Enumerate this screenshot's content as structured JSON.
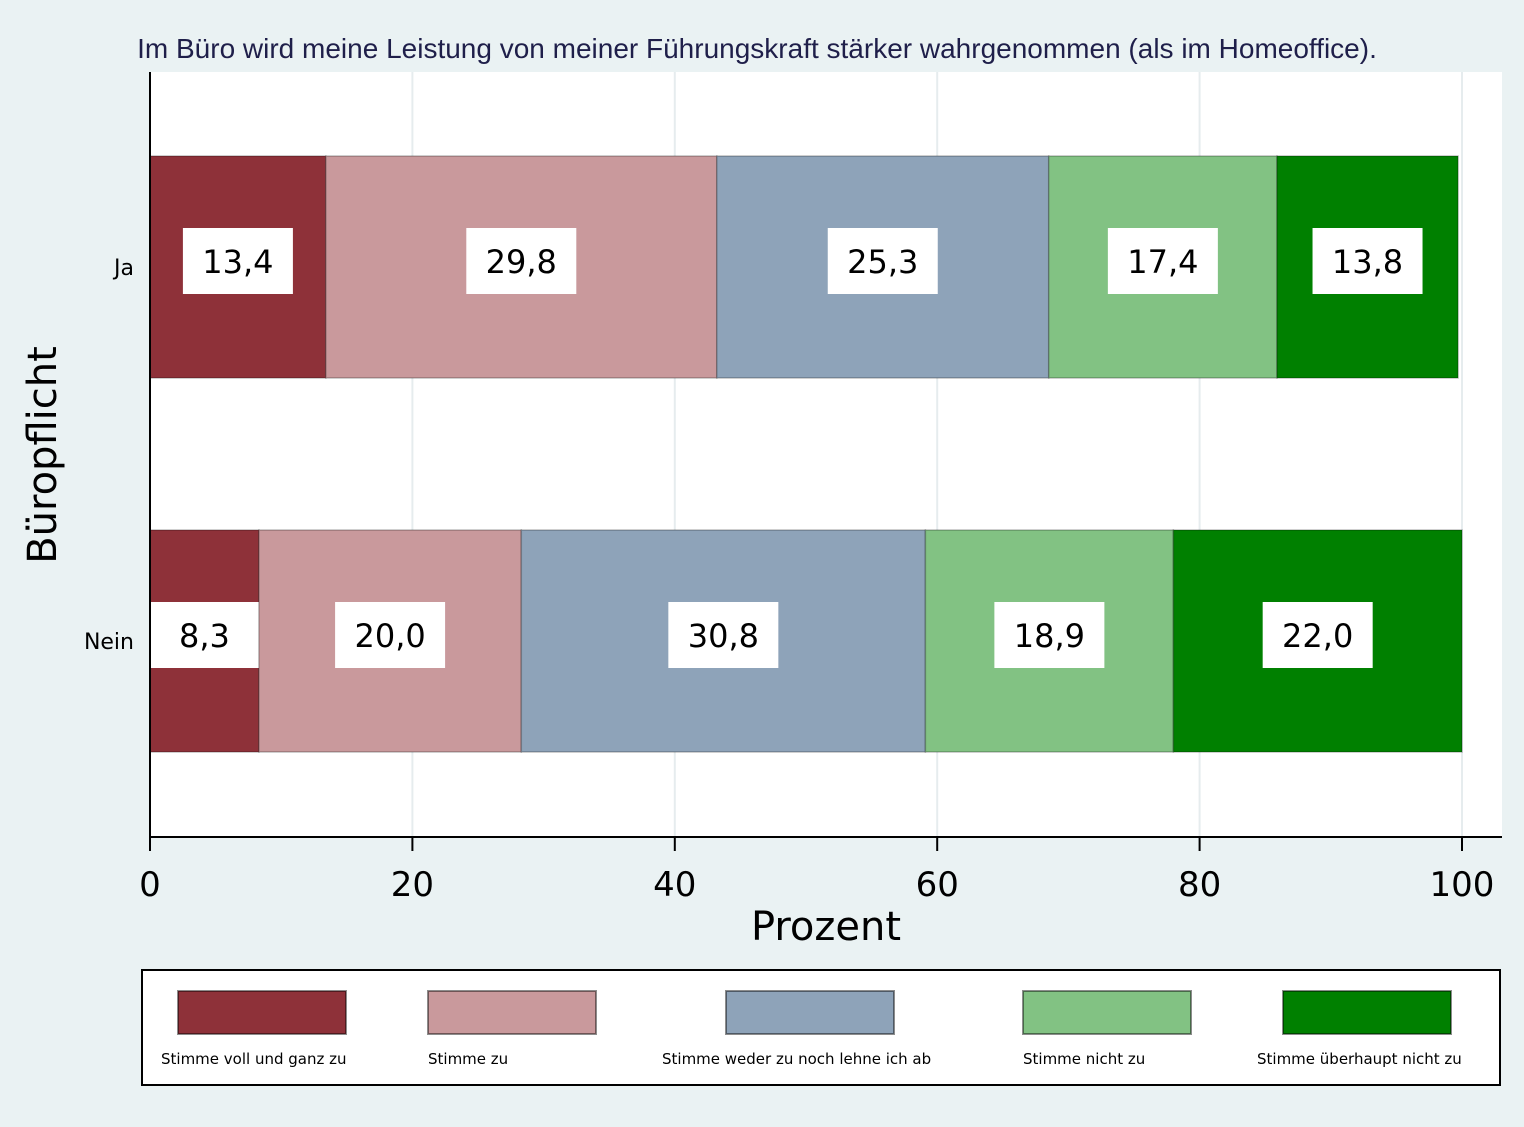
{
  "chart_data": {
    "type": "bar",
    "orientation": "horizontal",
    "stacked": true,
    "title": "Im Büro wird meine Leistung von meiner Führungskraft stärker wahrgenommen (als im Homeoffice).",
    "xlabel": "Prozent",
    "ylabel": "Büropflicht",
    "xlim": [
      0,
      100
    ],
    "xticks": [
      "0",
      "20",
      "40",
      "60",
      "80",
      "100"
    ],
    "grid": true,
    "legend_position": "bottom",
    "categories": [
      "Ja",
      "Nein"
    ],
    "series": [
      {
        "name": "Stimme voll und ganz zu",
        "color": "#8e3139",
        "values": [
          13.4,
          8.3
        ],
        "labels": [
          "13,4",
          "8,3"
        ]
      },
      {
        "name": "Stimme zu",
        "color": "#c9999c",
        "values": [
          29.8,
          20.0
        ],
        "labels": [
          "29,8",
          "20,0"
        ]
      },
      {
        "name": "Stimme weder zu noch lehne ich ab",
        "color": "#8ea3b9",
        "values": [
          25.3,
          30.8
        ],
        "labels": [
          "25,3",
          "30,8"
        ]
      },
      {
        "name": "Stimme nicht zu",
        "color": "#82c283",
        "values": [
          17.4,
          18.9
        ],
        "labels": [
          "17,4",
          "18,9"
        ]
      },
      {
        "name": "Stimme überhaupt nicht zu",
        "color": "#008000",
        "values": [
          13.8,
          22.0
        ],
        "labels": [
          "13,8",
          "22,0"
        ]
      }
    ]
  }
}
